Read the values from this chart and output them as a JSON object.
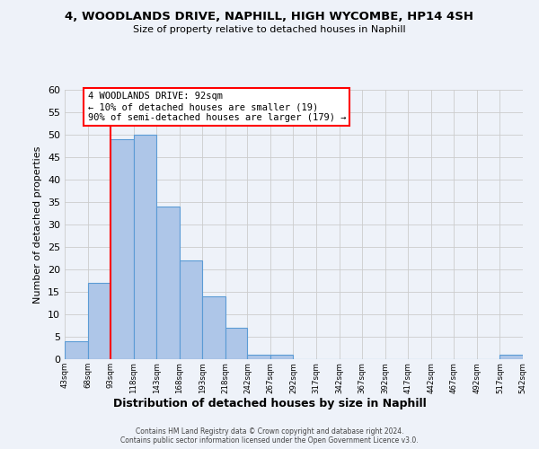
{
  "title": "4, WOODLANDS DRIVE, NAPHILL, HIGH WYCOMBE, HP14 4SH",
  "subtitle": "Size of property relative to detached houses in Naphill",
  "xlabel": "Distribution of detached houses by size in Naphill",
  "ylabel": "Number of detached properties",
  "footer_line1": "Contains HM Land Registry data © Crown copyright and database right 2024.",
  "footer_line2": "Contains public sector information licensed under the Open Government Licence v3.0.",
  "bin_edges": [
    43,
    68,
    93,
    118,
    143,
    168,
    193,
    218,
    242,
    267,
    292,
    317,
    342,
    367,
    392,
    417,
    442,
    467,
    492,
    517,
    542
  ],
  "bin_labels": [
    "43sqm",
    "68sqm",
    "93sqm",
    "118sqm",
    "143sqm",
    "168sqm",
    "193sqm",
    "218sqm",
    "242sqm",
    "267sqm",
    "292sqm",
    "317sqm",
    "342sqm",
    "367sqm",
    "392sqm",
    "417sqm",
    "442sqm",
    "467sqm",
    "492sqm",
    "517sqm",
    "542sqm"
  ],
  "counts": [
    4,
    17,
    49,
    50,
    34,
    22,
    14,
    7,
    1,
    1,
    0,
    0,
    0,
    0,
    0,
    0,
    0,
    0,
    0,
    1
  ],
  "bar_color": "#aec6e8",
  "bar_edge_color": "#5b9bd5",
  "property_line_x": 93,
  "annotation_title": "4 WOODLANDS DRIVE: 92sqm",
  "annotation_line1": "← 10% of detached houses are smaller (19)",
  "annotation_line2": "90% of semi-detached houses are larger (179) →",
  "vline_color": "red",
  "ylim": [
    0,
    60
  ],
  "yticks": [
    0,
    5,
    10,
    15,
    20,
    25,
    30,
    35,
    40,
    45,
    50,
    55,
    60
  ],
  "grid_color": "#cccccc",
  "background_color": "#eef2f9"
}
